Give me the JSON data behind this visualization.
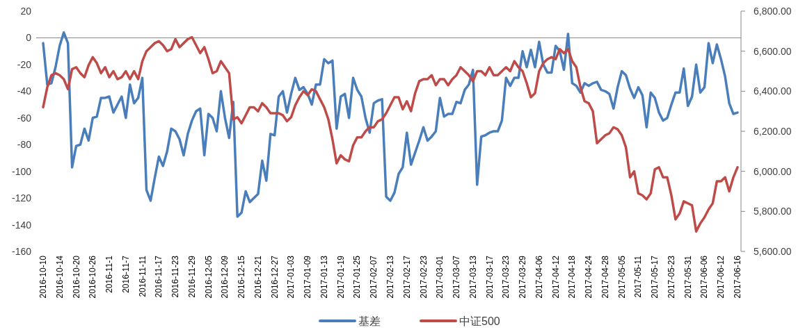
{
  "chart_data": {
    "type": "line",
    "legend": "bottom",
    "categories": [
      "2016-10-10",
      null,
      null,
      null,
      "2016-10-14",
      null,
      null,
      null,
      "2016-10-20",
      null,
      null,
      null,
      "2016-10-26",
      null,
      null,
      null,
      "2016-11-1",
      null,
      null,
      null,
      "2016-11-7",
      null,
      null,
      null,
      "2016-11-11",
      null,
      null,
      null,
      "2016-11-17",
      null,
      null,
      null,
      "2016-11-23",
      null,
      null,
      null,
      "2016-11-29",
      null,
      null,
      null,
      "2016-12-05",
      null,
      null,
      null,
      "2016-12-09",
      null,
      null,
      null,
      "2016-12-15",
      null,
      null,
      null,
      "2016-12-21",
      null,
      null,
      null,
      "2016-12-27",
      null,
      null,
      null,
      "2017-01-03",
      null,
      null,
      null,
      "2017-01-09",
      null,
      null,
      null,
      "2017-01-13",
      null,
      null,
      null,
      "2017-01-19",
      null,
      null,
      null,
      "2017-01-25",
      null,
      null,
      null,
      "2017-02-07",
      null,
      null,
      null,
      "2017-02-13",
      null,
      null,
      null,
      "2017-02-17",
      null,
      null,
      null,
      "2017-02-23",
      null,
      null,
      null,
      "2017-03-01",
      null,
      null,
      null,
      "2017-03-07",
      null,
      null,
      null,
      "2017-03-13",
      null,
      null,
      null,
      "2017-03-17",
      null,
      null,
      null,
      "2017-03-23",
      null,
      null,
      null,
      "2017-03-29",
      null,
      null,
      null,
      "2017-04-06",
      null,
      null,
      null,
      "2017-04-12",
      null,
      null,
      null,
      "2017-04-18",
      null,
      null,
      null,
      "2017-04-24",
      null,
      null,
      null,
      "2017-04-28",
      null,
      null,
      null,
      "2017-05-05",
      null,
      null,
      null,
      "2017-05-11",
      null,
      null,
      null,
      "2017-05-17",
      null,
      null,
      null,
      "2017-05-23",
      null,
      null,
      null,
      "2017-05-31",
      null,
      null,
      null,
      "2017-06-06",
      null,
      null,
      null,
      "2017-06-12",
      null,
      null,
      null,
      "2017-06-16"
    ],
    "ylim": [
      -160,
      20
    ],
    "yticks": [
      20,
      0,
      -20,
      -40,
      -60,
      -80,
      -100,
      -120,
      -140,
      -160
    ],
    "y2lim": [
      5600,
      6800
    ],
    "y2ticks": [
      {
        "value": 6800,
        "label": "6,800.00"
      },
      {
        "value": 6600,
        "label": "6,600.00"
      },
      {
        "value": 6400,
        "label": "6,400.00"
      },
      {
        "value": 6200,
        "label": "6,200.00"
      },
      {
        "value": 6000,
        "label": "6,000.00"
      },
      {
        "value": 5800,
        "label": "5,800.00"
      },
      {
        "value": 5600,
        "label": "5,600.00"
      }
    ],
    "series": [
      {
        "name": "基差",
        "color": "#4a7ebb",
        "values": [
          -4,
          -35,
          -34,
          -22,
          -6,
          4,
          -4,
          -97,
          -81,
          -80,
          -68,
          -77,
          -60,
          -59,
          -45,
          -45,
          -44,
          -56,
          -50,
          -44,
          -60,
          -35,
          -49,
          -45,
          -30,
          -114,
          -122,
          -105,
          -89,
          -96,
          -85,
          -68,
          -70,
          -76,
          -88,
          -72,
          -62,
          -55,
          -53,
          -88,
          -57,
          -60,
          -70,
          -40,
          -60,
          -75,
          -48,
          -134,
          -131,
          -115,
          -123,
          -120,
          -117,
          -92,
          -107,
          -72,
          -73,
          -44,
          -40,
          -56,
          -42,
          -30,
          -39,
          -37,
          -42,
          -50,
          -35,
          -35,
          -16,
          -19,
          -17,
          -68,
          -44,
          -42,
          -60,
          -30,
          -39,
          -44,
          -60,
          -71,
          -49,
          -47,
          -46,
          -119,
          -122,
          -116,
          -102,
          -97,
          -71,
          -95,
          -86,
          -77,
          -67,
          -77,
          -74,
          -70,
          -45,
          -59,
          -57,
          -57,
          -48,
          -49,
          -39,
          -35,
          -24,
          -110,
          -74,
          -73,
          -71,
          -70,
          -70,
          -62,
          -30,
          -36,
          -30,
          -30,
          -10,
          -22,
          -9,
          -22,
          -3,
          -20,
          -26,
          -26,
          -6,
          -10,
          -24,
          3,
          -34,
          -36,
          -41,
          -34,
          -36,
          -34,
          -33,
          -39,
          -40,
          -42,
          -53,
          -37,
          -25,
          -28,
          -38,
          -45,
          -37,
          -43,
          -67,
          -41,
          -45,
          -56,
          -62,
          -60,
          -50,
          -41,
          -41,
          -23,
          -51,
          -44,
          -20,
          -41,
          -37,
          -4,
          -19,
          -5,
          -16,
          -29,
          -49,
          -57,
          -56
        ]
      },
      {
        "name": "中证500",
        "color": "#be4b48",
        "axis": "y2",
        "values": [
          6320,
          6420,
          6480,
          6490,
          6480,
          6460,
          6410,
          6510,
          6520,
          6490,
          6470,
          6530,
          6570,
          6540,
          6490,
          6520,
          6470,
          6500,
          6460,
          6470,
          6500,
          6460,
          6500,
          6460,
          6550,
          6600,
          6620,
          6640,
          6650,
          6630,
          6600,
          6610,
          6660,
          6620,
          6640,
          6660,
          6670,
          6630,
          6590,
          6620,
          6560,
          6490,
          6500,
          6550,
          6520,
          6490,
          6260,
          6270,
          6240,
          6280,
          6320,
          6320,
          6300,
          6340,
          6320,
          6290,
          6290,
          6290,
          6280,
          6250,
          6270,
          6330,
          6370,
          6400,
          6380,
          6410,
          6400,
          6360,
          6320,
          6260,
          6160,
          6040,
          6080,
          6060,
          6050,
          6130,
          6170,
          6170,
          6200,
          6220,
          6220,
          6250,
          6260,
          6290,
          6330,
          6370,
          6370,
          6310,
          6350,
          6300,
          6390,
          6450,
          6460,
          6460,
          6480,
          6430,
          6460,
          6460,
          6430,
          6460,
          6480,
          6520,
          6500,
          6480,
          6450,
          6500,
          6500,
          6480,
          6520,
          6480,
          6480,
          6500,
          6520,
          6500,
          6550,
          6520,
          6500,
          6440,
          6370,
          6390,
          6500,
          6540,
          6560,
          6570,
          6560,
          6610,
          6590,
          6610,
          6550,
          6520,
          6420,
          6350,
          6340,
          6300,
          6140,
          6160,
          6180,
          6190,
          6220,
          6210,
          6180,
          6120,
          5970,
          6000,
          5890,
          5880,
          5860,
          5890,
          6010,
          6020,
          5970,
          5970,
          5880,
          5760,
          5790,
          5850,
          5840,
          5830,
          5700,
          5740,
          5770,
          5810,
          5840,
          5950,
          5950,
          5970,
          5900,
          5970,
          6020
        ]
      }
    ]
  }
}
